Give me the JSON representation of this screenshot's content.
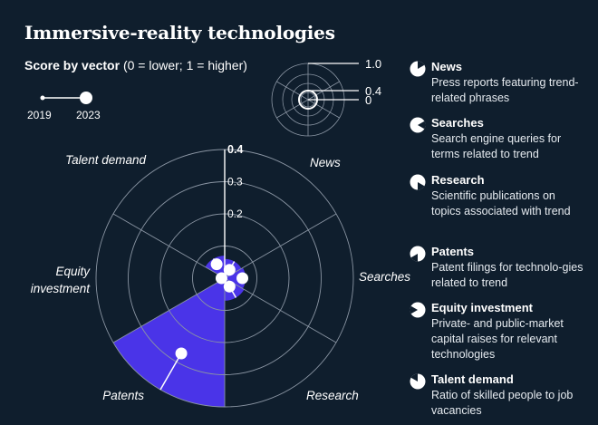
{
  "title": "Immersive-reality technologies",
  "subtitle_bold": "Score by vector",
  "subtitle_rest": " (0 = lower; 1 = higher)",
  "years": {
    "start": "2019",
    "end": "2023"
  },
  "key": {
    "label_max": "1.0",
    "label_mid": "0.4",
    "label_min": "0"
  },
  "colors": {
    "background": "#0f1e2d",
    "fill": "#4a34e8",
    "ring": "#8a95a3",
    "white": "#ffffff"
  },
  "chart_data": {
    "type": "polar-area",
    "rlim": [
      0,
      0.4
    ],
    "rticks": [
      {
        "value": 0.1,
        "label": ""
      },
      {
        "value": 0.2,
        "label": "0.2"
      },
      {
        "value": 0.3,
        "label": "0.3"
      },
      {
        "value": 0.4,
        "label": "0.4"
      }
    ],
    "vectors": [
      {
        "name": "News",
        "value_2019": 0.03,
        "value_2023": 0.06
      },
      {
        "name": "Searches",
        "value_2019": 0.055,
        "value_2023": 0.065
      },
      {
        "name": "Research",
        "value_2019": 0.03,
        "value_2023": 0.07
      },
      {
        "name": "Patents",
        "value_2019": 0.27,
        "value_2023": 0.41
      },
      {
        "name": "Equity investment",
        "value_2019": 0.01,
        "value_2023": 0.02
      },
      {
        "name": "Talent demand",
        "value_2019": 0.05,
        "value_2023": 0.07
      }
    ]
  },
  "legend": [
    {
      "name": "News",
      "description": "Press reports featuring trend-related phrases"
    },
    {
      "name": "Searches",
      "description": "Search engine queries for terms related to trend"
    },
    {
      "name": "Research",
      "description": "Scientific publications on topics associated with trend"
    },
    {
      "name": "Patents",
      "description": "Patent filings for technolo-gies related to trend"
    },
    {
      "name": "Equity investment",
      "description": "Private- and public-market capital raises for relevant technologies"
    },
    {
      "name": "Talent demand",
      "description": "Ratio of skilled people to job vacancies"
    }
  ]
}
